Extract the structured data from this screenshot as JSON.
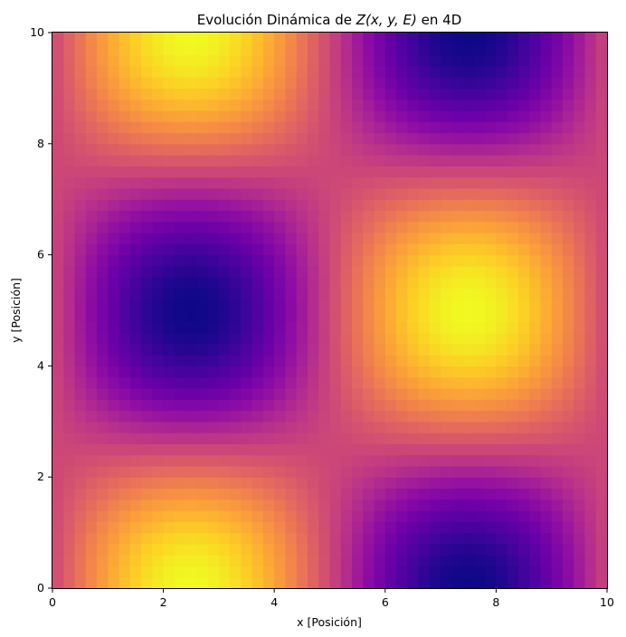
{
  "chart_data": {
    "type": "heatmap",
    "title": "Evolución Dinámica de Z(x, y, E) en 4D",
    "title_parts": {
      "prefix": "Evolución Dinámica de ",
      "formula": "Z(x, y, E)",
      "suffix": " en 4D"
    },
    "xlabel": "x [Posición]",
    "ylabel": "y [Posición]",
    "xlim": [
      0,
      10
    ],
    "ylim": [
      0,
      10
    ],
    "x_ticks": [
      0,
      2,
      4,
      6,
      8,
      10
    ],
    "y_ticks": [
      0,
      2,
      4,
      6,
      8,
      10
    ],
    "x_tick_labels": [
      "0",
      "2",
      "4",
      "6",
      "8",
      "10"
    ],
    "y_tick_labels": [
      "0",
      "2",
      "4",
      "6",
      "8",
      "10"
    ],
    "colormap": "plasma",
    "colorbar": false,
    "grid": false,
    "grid_resolution": [
      50,
      50
    ],
    "value_range": [
      -1,
      1
    ],
    "surface_model": "sin(2*pi*x/10) * cos(2*pi*y/10)",
    "extrema": [
      {
        "x": 2.5,
        "y": 5.0,
        "kind": "min"
      },
      {
        "x": 7.5,
        "y": 5.0,
        "kind": "max"
      },
      {
        "x": 2.5,
        "y": 0.0,
        "kind": "max"
      },
      {
        "x": 2.5,
        "y": 10.0,
        "kind": "max"
      },
      {
        "x": 7.5,
        "y": 0.0,
        "kind": "min"
      },
      {
        "x": 7.5,
        "y": 10.0,
        "kind": "min"
      }
    ]
  }
}
